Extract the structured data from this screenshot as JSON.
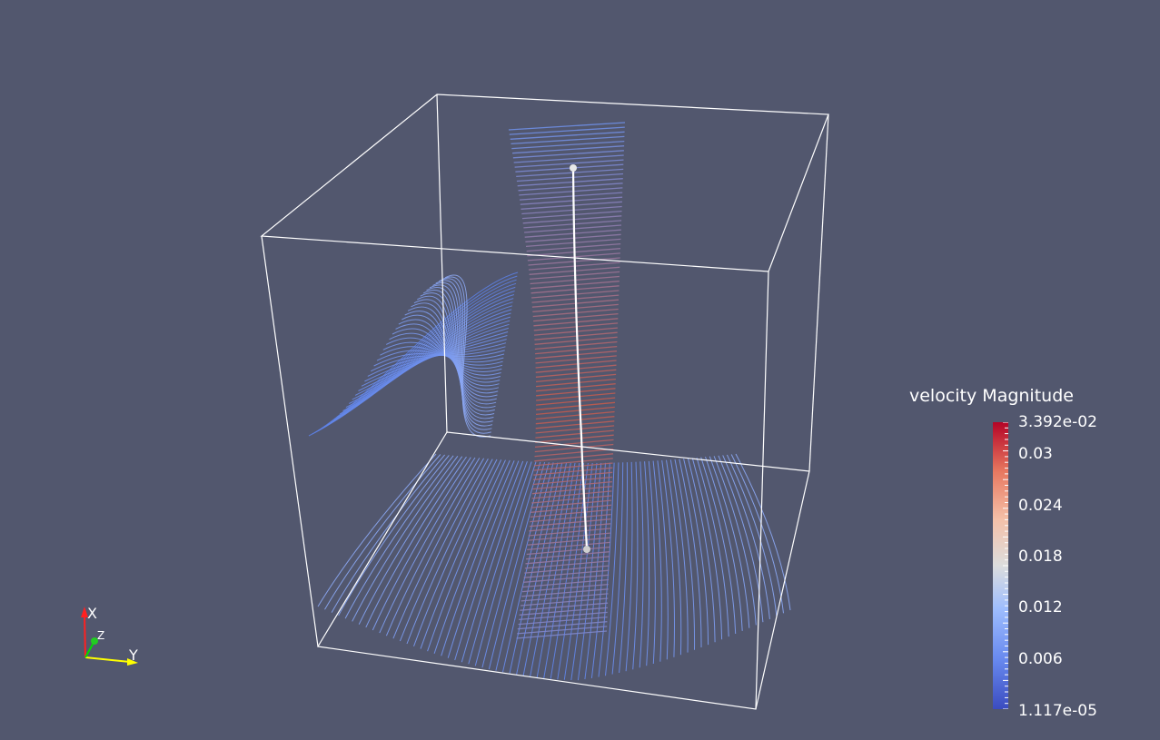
{
  "scalar_bar": {
    "title": "velocity Magnitude",
    "max_label": "3.392e-02",
    "tick_labels": [
      "0.03",
      "0.024",
      "0.018",
      "0.012",
      "0.006"
    ],
    "min_label": "1.117e-05",
    "range": [
      1.117e-05,
      0.03392
    ],
    "colormap": [
      "#3b4cc0",
      "#7396f5",
      "#b0cbfc",
      "#dddddd",
      "#f6bfa6",
      "#e8785e",
      "#b40426"
    ]
  },
  "orientation_axes": {
    "x_label": "X",
    "y_label": "Y",
    "z_label": "Z",
    "x_color": "#ff0000",
    "y_color": "#ffff00",
    "z_color": "#00ff00"
  },
  "scene": {
    "background": "#52576e",
    "outline_color": "#ffffff",
    "stream_low_color": "#6a8fe8",
    "stream_high_color": "#c95a4a"
  }
}
